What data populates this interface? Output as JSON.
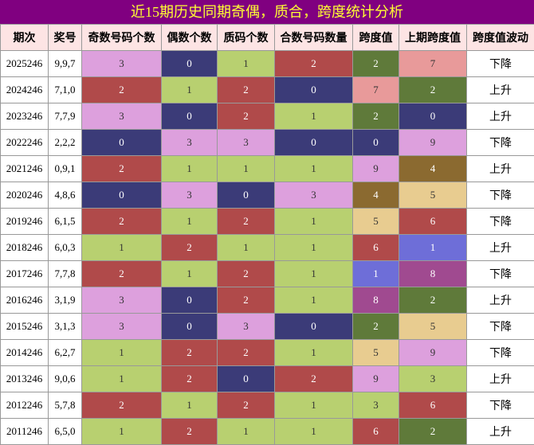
{
  "header": {
    "title": "近15期历史同期奇偶，质合，跨度统计分析"
  },
  "table": {
    "columns": [
      "期次",
      "奖号",
      "奇数号码个数",
      "偶数个数",
      "质码个数",
      "合数号码数量",
      "跨度值",
      "上期跨度值",
      "跨度值波动"
    ],
    "rows": [
      [
        "2025246",
        "9,9,7",
        3,
        0,
        1,
        2,
        2,
        7,
        "下降"
      ],
      [
        "2024246",
        "7,1,0",
        2,
        1,
        2,
        0,
        7,
        2,
        "上升"
      ],
      [
        "2023246",
        "7,7,9",
        3,
        0,
        2,
        1,
        2,
        0,
        "上升"
      ],
      [
        "2022246",
        "2,2,2",
        0,
        3,
        3,
        0,
        0,
        9,
        "下降"
      ],
      [
        "2021246",
        "0,9,1",
        2,
        1,
        1,
        1,
        9,
        4,
        "上升"
      ],
      [
        "2020246",
        "4,8,6",
        0,
        3,
        0,
        3,
        4,
        5,
        "下降"
      ],
      [
        "2019246",
        "6,1,5",
        2,
        1,
        2,
        1,
        5,
        6,
        "下降"
      ],
      [
        "2018246",
        "6,0,3",
        1,
        2,
        1,
        1,
        6,
        1,
        "上升"
      ],
      [
        "2017246",
        "7,7,8",
        2,
        1,
        2,
        1,
        1,
        8,
        "下降"
      ],
      [
        "2016246",
        "3,1,9",
        3,
        0,
        2,
        1,
        8,
        2,
        "上升"
      ],
      [
        "2015246",
        "3,1,3",
        3,
        0,
        3,
        0,
        2,
        5,
        "下降"
      ],
      [
        "2014246",
        "6,2,7",
        1,
        2,
        2,
        1,
        5,
        9,
        "下降"
      ],
      [
        "2013246",
        "9,0,6",
        1,
        2,
        0,
        2,
        9,
        3,
        "上升"
      ],
      [
        "2012246",
        "5,7,8",
        2,
        1,
        2,
        1,
        3,
        6,
        "下降"
      ],
      [
        "2011246",
        "6,5,0",
        1,
        2,
        1,
        1,
        6,
        2,
        "上升"
      ]
    ]
  }
}
